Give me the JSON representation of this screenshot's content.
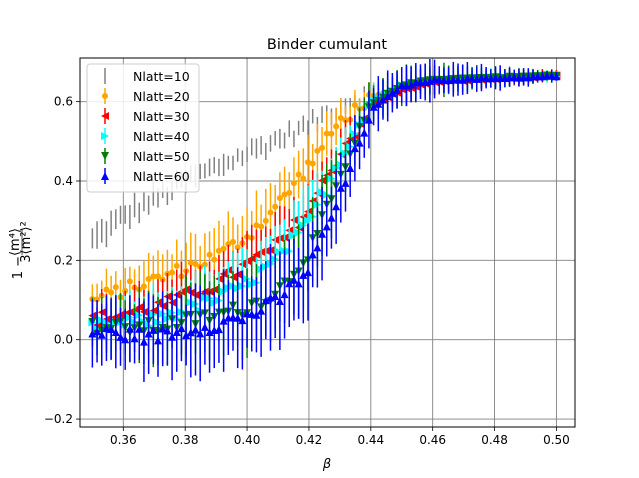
{
  "chart_data": {
    "type": "scatter",
    "title": "Binder cumulant",
    "xlabel": "β",
    "ylabel_parts": {
      "prefix": "1 − ",
      "numerator": "⟨m⁴⟩",
      "denominator": "3⟨m²⟩²"
    },
    "xlim": [
      0.346,
      0.506
    ],
    "ylim": [
      -0.22,
      0.71
    ],
    "xticks": [
      0.36,
      0.38,
      0.4,
      0.42,
      0.44,
      0.46,
      0.48,
      0.5
    ],
    "xtick_labels": [
      "0.36",
      "0.38",
      "0.40",
      "0.42",
      "0.44",
      "0.46",
      "0.48",
      "0.50"
    ],
    "yticks": [
      -0.2,
      0.0,
      0.2,
      0.4,
      0.6
    ],
    "ytick_labels": [
      "−0.2",
      "0.0",
      "0.2",
      "0.4",
      "0.6"
    ],
    "grid": true,
    "legend_position": "top-left",
    "x_range": {
      "start": 0.35,
      "end": 0.5,
      "points": 100
    },
    "series": [
      {
        "name": "Nlatt=10",
        "color": "#808080",
        "marker": "vline",
        "kp": [
          [
            0.35,
            0.25
          ],
          [
            0.36,
            0.31
          ],
          [
            0.38,
            0.4
          ],
          [
            0.4,
            0.47
          ],
          [
            0.42,
            0.54
          ],
          [
            0.43,
            0.59
          ],
          [
            0.44,
            0.62
          ],
          [
            0.45,
            0.645
          ],
          [
            0.46,
            0.655
          ],
          [
            0.5,
            0.665
          ]
        ],
        "ekp": [
          [
            0.35,
            0.028
          ],
          [
            0.4,
            0.022
          ],
          [
            0.44,
            0.015
          ],
          [
            0.5,
            0.01
          ]
        ]
      },
      {
        "name": "Nlatt=20",
        "color": "#ffa500",
        "marker": "circle",
        "kp": [
          [
            0.35,
            0.1
          ],
          [
            0.37,
            0.15
          ],
          [
            0.39,
            0.21
          ],
          [
            0.4,
            0.26
          ],
          [
            0.41,
            0.34
          ],
          [
            0.42,
            0.44
          ],
          [
            0.43,
            0.55
          ],
          [
            0.44,
            0.61
          ],
          [
            0.45,
            0.635
          ],
          [
            0.46,
            0.65
          ],
          [
            0.5,
            0.665
          ]
        ],
        "ekp": [
          [
            0.35,
            0.04
          ],
          [
            0.4,
            0.075
          ],
          [
            0.42,
            0.06
          ],
          [
            0.44,
            0.03
          ],
          [
            0.5,
            0.012
          ]
        ]
      },
      {
        "name": "Nlatt=30",
        "color": "#ff0000",
        "marker": "triangle-left",
        "kp": [
          [
            0.35,
            0.05
          ],
          [
            0.37,
            0.08
          ],
          [
            0.39,
            0.14
          ],
          [
            0.4,
            0.19
          ],
          [
            0.41,
            0.24
          ],
          [
            0.42,
            0.33
          ],
          [
            0.43,
            0.47
          ],
          [
            0.44,
            0.59
          ],
          [
            0.45,
            0.63
          ],
          [
            0.46,
            0.65
          ],
          [
            0.5,
            0.665
          ]
        ],
        "ekp": [
          [
            0.35,
            0.05
          ],
          [
            0.4,
            0.07
          ],
          [
            0.42,
            0.07
          ],
          [
            0.44,
            0.035
          ],
          [
            0.5,
            0.012
          ]
        ]
      },
      {
        "name": "Nlatt=40",
        "color": "#00ffff",
        "marker": "triangle-right",
        "kp": [
          [
            0.35,
            0.03
          ],
          [
            0.37,
            0.05
          ],
          [
            0.39,
            0.1
          ],
          [
            0.4,
            0.14
          ],
          [
            0.41,
            0.2
          ],
          [
            0.42,
            0.29
          ],
          [
            0.43,
            0.45
          ],
          [
            0.44,
            0.6
          ],
          [
            0.45,
            0.64
          ],
          [
            0.46,
            0.655
          ],
          [
            0.5,
            0.665
          ]
        ],
        "ekp": [
          [
            0.35,
            0.055
          ],
          [
            0.4,
            0.08
          ],
          [
            0.42,
            0.08
          ],
          [
            0.44,
            0.04
          ],
          [
            0.5,
            0.012
          ]
        ]
      },
      {
        "name": "Nlatt=50",
        "color": "#008000",
        "marker": "triangle-down",
        "kp": [
          [
            0.35,
            0.03
          ],
          [
            0.37,
            0.03
          ],
          [
            0.39,
            0.06
          ],
          [
            0.4,
            0.08
          ],
          [
            0.41,
            0.12
          ],
          [
            0.42,
            0.22
          ],
          [
            0.43,
            0.4
          ],
          [
            0.44,
            0.59
          ],
          [
            0.45,
            0.64
          ],
          [
            0.46,
            0.655
          ],
          [
            0.5,
            0.665
          ]
        ],
        "ekp": [
          [
            0.35,
            0.07
          ],
          [
            0.4,
            0.1
          ],
          [
            0.42,
            0.1
          ],
          [
            0.44,
            0.05
          ],
          [
            0.5,
            0.012
          ]
        ]
      },
      {
        "name": "Nlatt=60",
        "color": "#0000ff",
        "marker": "triangle-up",
        "kp": [
          [
            0.35,
            0.02
          ],
          [
            0.37,
            0.01
          ],
          [
            0.39,
            0.04
          ],
          [
            0.4,
            0.06
          ],
          [
            0.41,
            0.1
          ],
          [
            0.42,
            0.18
          ],
          [
            0.43,
            0.36
          ],
          [
            0.44,
            0.58
          ],
          [
            0.45,
            0.64
          ],
          [
            0.46,
            0.655
          ],
          [
            0.5,
            0.665
          ]
        ],
        "ekp": [
          [
            0.35,
            0.075
          ],
          [
            0.4,
            0.11
          ],
          [
            0.42,
            0.11
          ],
          [
            0.44,
            0.06
          ],
          [
            0.5,
            0.012
          ]
        ]
      }
    ]
  }
}
